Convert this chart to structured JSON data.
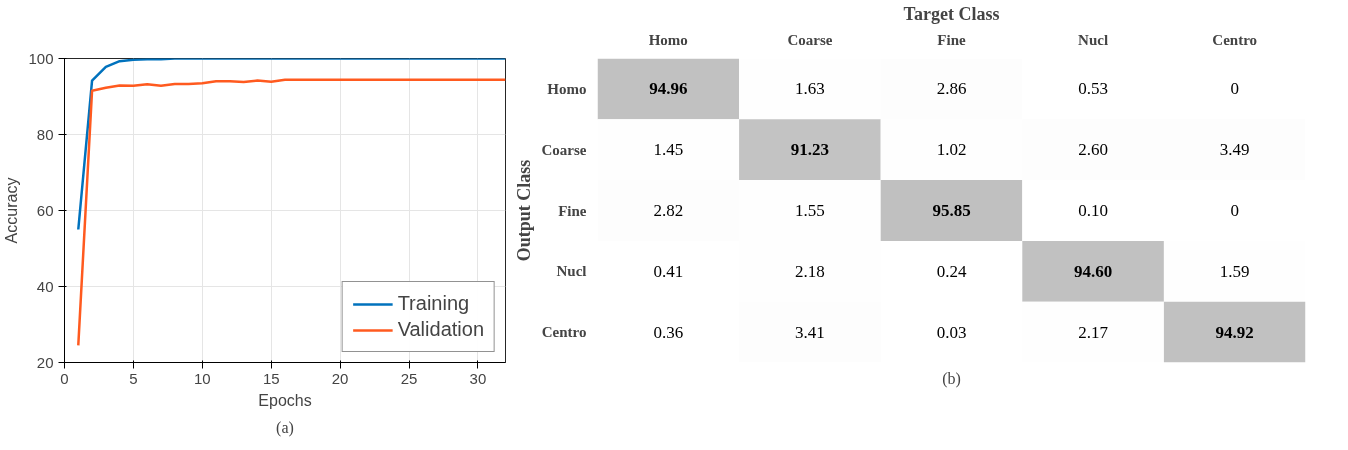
{
  "chart_data": [
    {
      "type": "line",
      "xlabel": "Epochs",
      "ylabel": "Accuracy",
      "xlim": [
        0,
        32
      ],
      "ylim": [
        20,
        100
      ],
      "xticks": [
        0,
        5,
        10,
        15,
        20,
        25,
        30
      ],
      "yticks": [
        20,
        40,
        60,
        80,
        100
      ],
      "grid": true,
      "legend": "bottom right",
      "marker": "none",
      "line_style": "solid",
      "annotations": [
        "(a)"
      ],
      "x": [
        1,
        2,
        3,
        4,
        5,
        6,
        7,
        8,
        9,
        10,
        11,
        12,
        13,
        14,
        15,
        16,
        17,
        18,
        19,
        20,
        21,
        22,
        23,
        24,
        25,
        26,
        27,
        28,
        29,
        30,
        31,
        32
      ],
      "series": [
        {
          "name": "Training",
          "color": "#0072bd",
          "values": [
            55,
            94.2,
            97.8,
            99.3,
            99.7,
            99.8,
            99.8,
            100,
            100,
            100,
            100,
            100,
            100,
            100,
            100,
            100,
            100,
            100,
            100,
            100,
            100,
            100,
            100,
            100,
            100,
            100,
            100,
            100,
            100,
            100,
            100,
            100
          ]
        },
        {
          "name": "Validation",
          "color": "#ff5a1f",
          "values": [
            24.5,
            91.5,
            92.3,
            92.9,
            92.8,
            93.2,
            92.8,
            93.3,
            93.3,
            93.5,
            94,
            94,
            93.8,
            94.2,
            93.9,
            94.4,
            94.4,
            94.4,
            94.4,
            94.4,
            94.4,
            94.4,
            94.4,
            94.4,
            94.4,
            94.4,
            94.4,
            94.4,
            94.4,
            94.4,
            94.4,
            94.4
          ]
        }
      ]
    },
    {
      "type": "heatmap",
      "xlabel": "Target Class",
      "ylabel": "Output Class",
      "annotations": [
        "(b)"
      ],
      "colors": [
        "#ffffff",
        "#c0c0c0"
      ],
      "data_labels": true,
      "categories": [
        "Homo",
        "Coarse",
        "Fine",
        "Nucl",
        "Centro"
      ],
      "y_categories": [
        "Homo",
        "Coarse",
        "Fine",
        "Nucl",
        "Centro"
      ],
      "cells": [
        [
          94.96,
          1.63,
          2.86,
          0.53,
          0
        ],
        [
          1.45,
          91.23,
          1.02,
          2.6,
          3.49
        ],
        [
          2.82,
          1.55,
          95.85,
          0.1,
          0
        ],
        [
          0.41,
          2.18,
          0.24,
          94.6,
          1.59
        ],
        [
          0.36,
          3.41,
          0.03,
          2.17,
          94.92
        ]
      ],
      "cell_labels": [
        [
          "94.96",
          "1.63",
          "2.86",
          "0.53",
          "0"
        ],
        [
          "1.45",
          "91.23",
          "1.02",
          "2.60",
          "3.49"
        ],
        [
          "2.82",
          "1.55",
          "95.85",
          "0.10",
          "0"
        ],
        [
          "0.41",
          "2.18",
          "0.24",
          "94.60",
          "1.59"
        ],
        [
          "0.36",
          "3.41",
          "0.03",
          "2.17",
          "94.92"
        ]
      ]
    }
  ]
}
